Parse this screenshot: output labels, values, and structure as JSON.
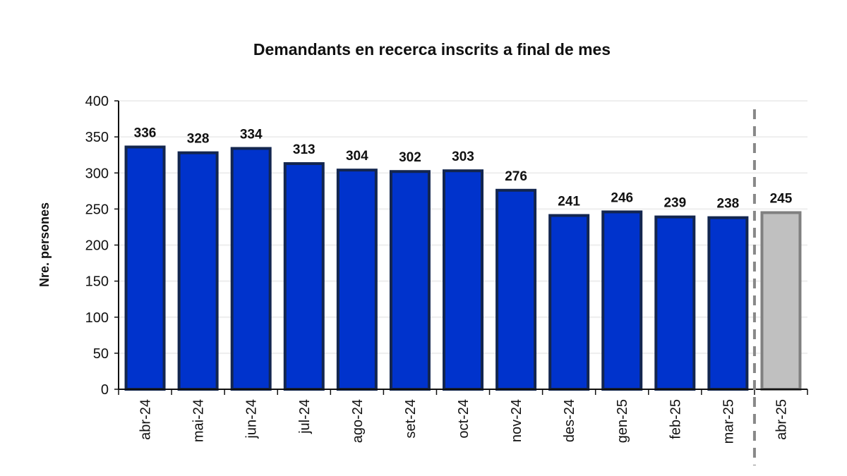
{
  "chart_data": {
    "type": "bar",
    "title": "Demandants en recerca inscrits a final de mes",
    "xlabel": "",
    "ylabel": "Nre. persones",
    "ylim": [
      0,
      400
    ],
    "yticks": [
      0,
      50,
      100,
      150,
      200,
      250,
      300,
      350,
      400
    ],
    "grid": true,
    "categories": [
      "abr-24",
      "mai-24",
      "jun-24",
      "jul-24",
      "ago-24",
      "set-24",
      "oct-24",
      "nov-24",
      "des-24",
      "gen-25",
      "feb-25",
      "mar-25",
      "abr-25"
    ],
    "values": [
      336,
      328,
      334,
      313,
      304,
      302,
      303,
      276,
      241,
      246,
      239,
      238,
      245
    ],
    "highlight_index": 12,
    "colors": {
      "bar": "#0033cc",
      "bar_border": "#13264f",
      "highlight_bar": "#c0c0c0",
      "highlight_border": "#808080",
      "highlight_label": "#3d3a14",
      "separator": "#888888",
      "grid": "#eeeeee"
    }
  }
}
